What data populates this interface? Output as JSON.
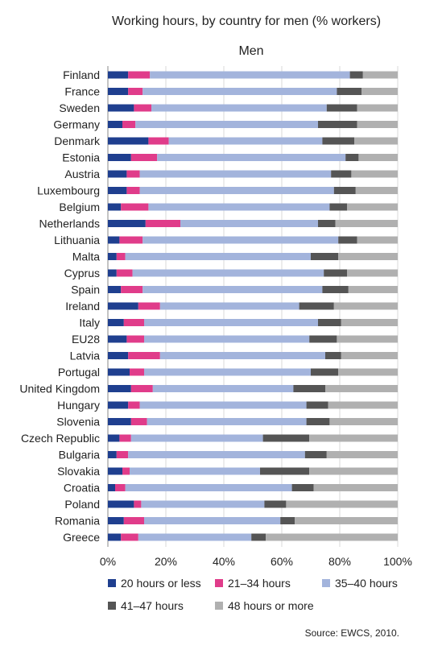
{
  "chart_data": {
    "type": "bar",
    "orientation": "horizontal",
    "stacked": true,
    "title": "Working hours, by country for men (% workers)",
    "subtitle": "Men",
    "source": "Source: EWCS, 2010.",
    "xlim": [
      0,
      100
    ],
    "xticks": [
      "0%",
      "20%",
      "40%",
      "60%",
      "80%",
      "100%"
    ],
    "xtick_values": [
      0,
      20,
      40,
      60,
      80,
      100
    ],
    "grid": "vertical",
    "legend_position": "bottom",
    "categories": [
      "Finland",
      "France",
      "Sweden",
      "Germany",
      "Denmark",
      "Estonia",
      "Austria",
      "Luxembourg",
      "Belgium",
      "Netherlands",
      "Lithuania",
      "Malta",
      "Cyprus",
      "Spain",
      "Ireland",
      "Italy",
      "EU28",
      "Latvia",
      "Portugal",
      "United Kingdom",
      "Hungary",
      "Slovenia",
      "Czech Republic",
      "Bulgaria",
      "Slovakia",
      "Croatia",
      "Poland",
      "Romania",
      "Greece"
    ],
    "series": [
      {
        "name": "20 hours or less",
        "color": "#1f3f8f",
        "values": [
          7,
          7,
          9,
          5,
          14,
          8,
          6.5,
          6.5,
          4.5,
          13,
          4,
          3,
          3,
          4.5,
          10.5,
          5.5,
          6.5,
          7,
          7.5,
          8,
          7,
          8,
          4,
          3,
          5,
          2.5,
          9,
          5.5,
          4.5
        ]
      },
      {
        "name": "21–34 hours",
        "color": "#e03c8a",
        "values": [
          7.5,
          5,
          6,
          4.5,
          7,
          9,
          4.5,
          4.5,
          9.5,
          12,
          8,
          3,
          5.5,
          7.5,
          7.5,
          7,
          6,
          11,
          5,
          7.5,
          4,
          5.5,
          4,
          4,
          2.5,
          3.5,
          2.5,
          7,
          6
        ]
      },
      {
        "name": "35–40 hours",
        "color": "#a3b4dc",
        "values": [
          69,
          67,
          60.5,
          63,
          53,
          65,
          66,
          67,
          62.5,
          47.5,
          67.5,
          64,
          66,
          62,
          48,
          60,
          57,
          57,
          57.5,
          48.5,
          57.5,
          55,
          45.5,
          61,
          45,
          57.5,
          42.5,
          47,
          39
        ]
      },
      {
        "name": "41–47 hours",
        "color": "#555555",
        "values": [
          4.5,
          8.5,
          10.5,
          13.5,
          11,
          4.5,
          7,
          7.5,
          6,
          6,
          6.5,
          9.5,
          8,
          9,
          12,
          8,
          9.5,
          5.5,
          9.5,
          11,
          7.5,
          8,
          16,
          7.5,
          17,
          7.5,
          7.5,
          5,
          5
        ]
      },
      {
        "name": "48 hours or more",
        "color": "#b0b0b0",
        "values": [
          12,
          12.5,
          14,
          14,
          15,
          13.5,
          16,
          14.5,
          17.5,
          21.5,
          14,
          20.5,
          17.5,
          17,
          22,
          19.5,
          21,
          19.5,
          20.5,
          25,
          24,
          23.5,
          30.5,
          24.5,
          30.5,
          29,
          38.5,
          35.5,
          45.5
        ]
      }
    ]
  }
}
